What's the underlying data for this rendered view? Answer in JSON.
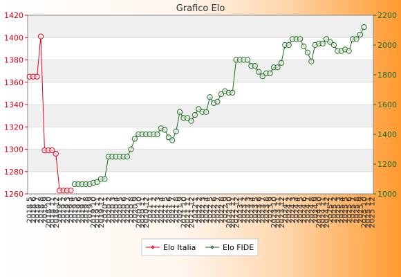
{
  "chart_data": {
    "type": "line",
    "title": "Grafico Elo",
    "x_labels": [
      "2018 5",
      "2018 6",
      "2018 7",
      "2018 8",
      "2018 9",
      "2018 10",
      "2018 11",
      "2018 12",
      "2019 1",
      "2019 2",
      "2019 3",
      "2019 4",
      "2019 5",
      "2019 6",
      "2019 7",
      "2019 8",
      "2019 9",
      "2019 10",
      "2019 11",
      "2019 12",
      "2020 1",
      "2020 2",
      "2020 3",
      "2020 4",
      "2020 5",
      "2020 6",
      "2020 7",
      "2020 8",
      "2020 9",
      "2020 10",
      "2020 11",
      "2020 12",
      "2021 1",
      "2021 2",
      "2021 3",
      "2021 4",
      "2021 5",
      "2021 6",
      "2021 7",
      "2021 8",
      "2021 9",
      "2021 10",
      "2021 11",
      "2021 12",
      "2022 1",
      "2022 2",
      "2022 3",
      "2022 4",
      "2022 5",
      "2022 6",
      "2022 7",
      "2022 8",
      "2022 9",
      "2022 10",
      "2022 11",
      "2022 12",
      "2023 1",
      "2023 2",
      "2023 3",
      "2023 4",
      "2023 5",
      "2023 6",
      "2023 7",
      "2023 8",
      "2023 9",
      "2023 10",
      "2023 11",
      "2023 12",
      "2024 1",
      "2024 2",
      "2024 3",
      "2024 4",
      "2024 5",
      "2024 6",
      "2024 7",
      "2024 8",
      "2024 9",
      "2024 10",
      "2024 11",
      "2024 12",
      "2025 1",
      "2025 2",
      "2025 3",
      "2025 4",
      "2025 5",
      "2025 6",
      "2025 7",
      "2025 8",
      "2025 9",
      "2025 10",
      "2025 11",
      "2025 12"
    ],
    "y_left": {
      "min": 1260,
      "max": 1420,
      "ticks": [
        1260,
        1280,
        1300,
        1320,
        1340,
        1360,
        1380,
        1400,
        1420
      ]
    },
    "y_right": {
      "min": 1000,
      "max": 2200,
      "ticks": [
        1000,
        1200,
        1400,
        1600,
        1800,
        2000,
        2200
      ]
    },
    "series": [
      {
        "name": "Elo Italia",
        "color": "#e8001c",
        "axis": "left",
        "start_index": 0,
        "values": [
          1365,
          1365,
          1365,
          1401,
          1299,
          1299,
          1299,
          1296,
          1263,
          1263,
          1263,
          1263
        ]
      },
      {
        "name": "Elo FIDE",
        "color": "#1a6b1a",
        "axis": "right",
        "start_index": 12,
        "values": [
          1065,
          1065,
          1065,
          1065,
          1065,
          1075,
          1080,
          1100,
          1100,
          1250,
          1250,
          1250,
          1250,
          1250,
          1250,
          1300,
          1370,
          1400,
          1400,
          1400,
          1400,
          1400,
          1400,
          1440,
          1430,
          1380,
          1360,
          1420,
          1550,
          1510,
          1510,
          1490,
          1530,
          1570,
          1550,
          1550,
          1650,
          1610,
          1620,
          1670,
          1690,
          1680,
          1680,
          1900,
          1900,
          1900,
          1900,
          1860,
          1860,
          1820,
          1790,
          1810,
          1810,
          1850,
          1850,
          1880,
          2000,
          2000,
          2040,
          2040,
          2040,
          1990,
          1950,
          1890,
          2000,
          2010,
          2010,
          2040,
          2020,
          2000,
          1960,
          1960,
          1970,
          1960,
          2040,
          2040,
          2070,
          2120
        ]
      }
    ],
    "legend_position": "bottom",
    "grid": true
  }
}
